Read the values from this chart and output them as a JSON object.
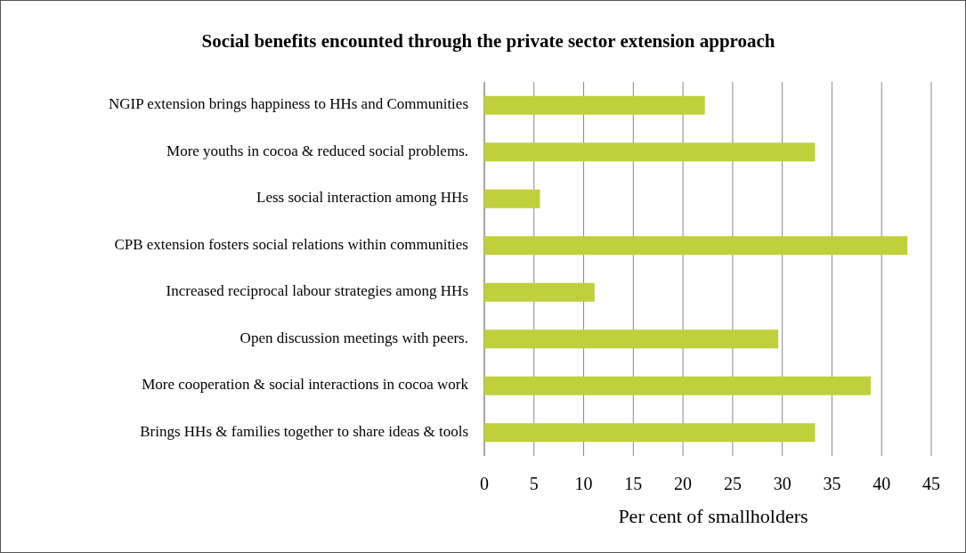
{
  "chart_data": {
    "type": "bar",
    "orientation": "horizontal",
    "title": "Social benefits encounted through the private sector extension approach",
    "xlabel": "Per cent of smallholders",
    "categories": [
      "NGIP extension brings happiness to HHs and Communities",
      "More youths in cocoa & reduced  social problems.",
      "Less social interaction among HHs",
      "CPB extension fosters social relations within communities",
      "Increased reciprocal labour strategies among HHs",
      "Open discussion meetings with peers.",
      "More cooperation & social interactions in cocoa work",
      "Brings HHs & families together to share ideas & tools"
    ],
    "values": [
      22.2,
      33.3,
      5.6,
      42.6,
      11.1,
      29.6,
      38.9,
      33.3
    ],
    "color": "#c0d03a",
    "xlim": [
      0,
      45
    ],
    "xticks": [
      0,
      5,
      10,
      15,
      20,
      25,
      30,
      35,
      40,
      45
    ],
    "grid": "x"
  }
}
